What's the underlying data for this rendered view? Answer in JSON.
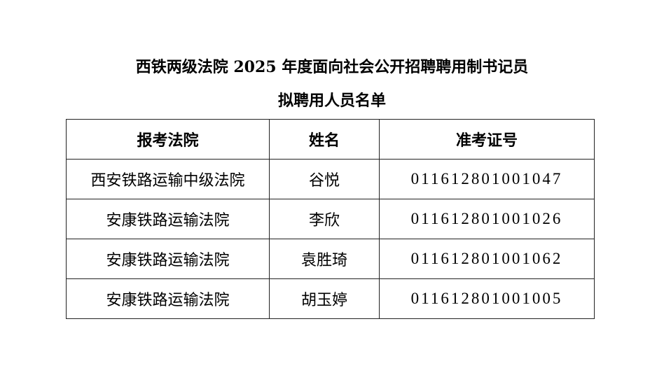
{
  "title_line1": "西铁两级法院 2025 年度面向社会公开招聘聘用制书记员",
  "title_line2": "拟聘用人员名单",
  "table": {
    "headers": [
      "报考法院",
      "姓名",
      "准考证号"
    ],
    "rows": [
      [
        "西安铁路运输中级法院",
        "谷悦",
        "011612801001047"
      ],
      [
        "安康铁路运输法院",
        "李欣",
        "011612801001026"
      ],
      [
        "安康铁路运输法院",
        "袁胜琦",
        "011612801001062"
      ],
      [
        "安康铁路运输法院",
        "胡玉婷",
        "011612801001005"
      ]
    ]
  }
}
